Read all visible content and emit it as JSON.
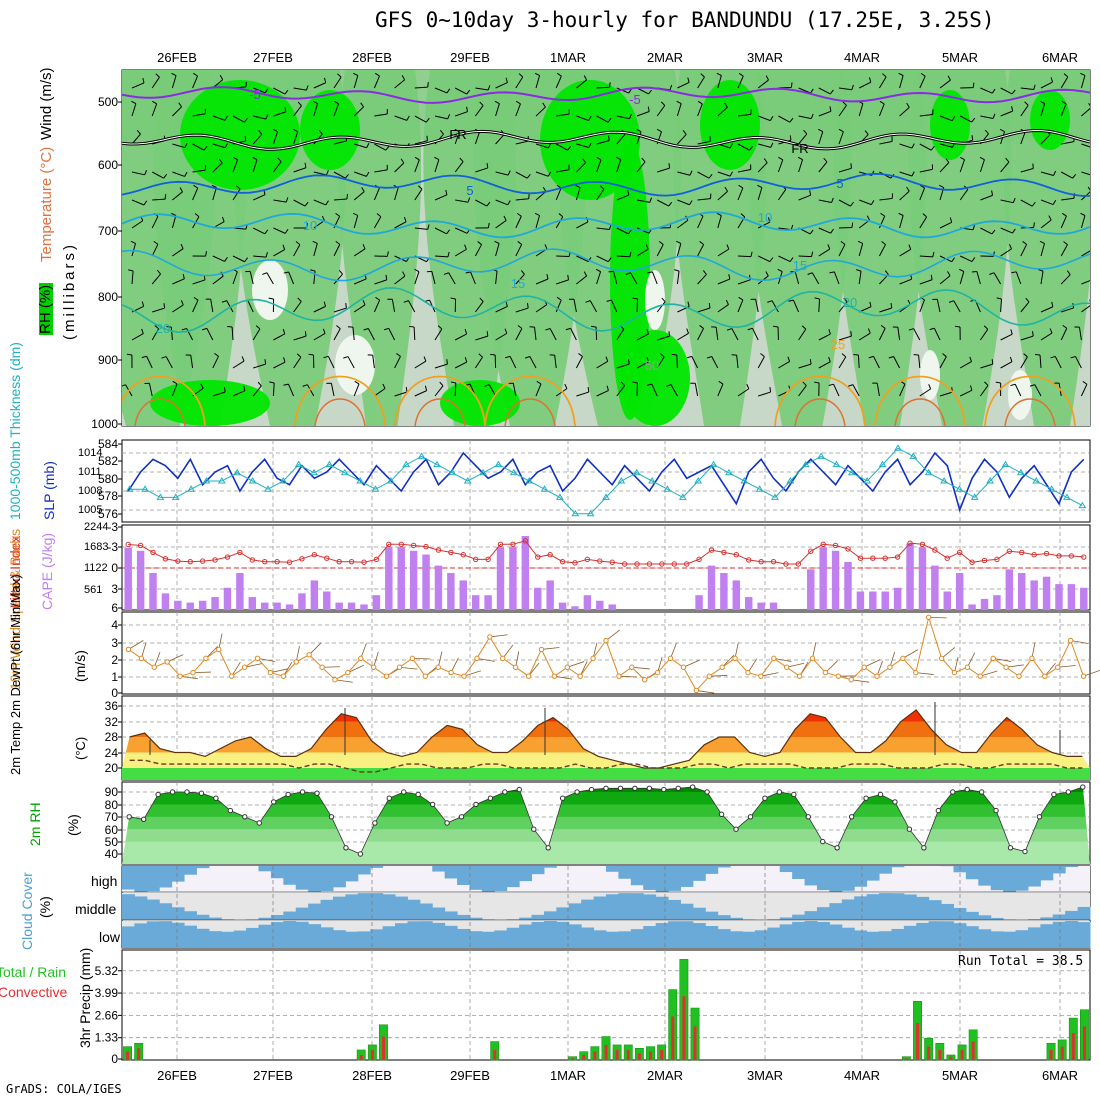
{
  "title": "GFS 0~10day 3-hourly for BANDUNDU (17.25E, 3.25S)",
  "credit": "GrADS: COLA/IGES",
  "colors": {
    "rh_light": "#c8d8c8",
    "rh_mid": "#78cc78",
    "rh_bright": "#00e600",
    "temp_purple": "#8a2be2",
    "temp_fr": "#000000",
    "temp_blue": "#1060d8",
    "temp_cyan": "#20a8d8",
    "temp_teal": "#20b4a0",
    "temp_orange": "#f0a020",
    "slp": "#1030c0",
    "thickness": "#20b0c0",
    "lifted": "#d83030",
    "cape": "#c080f0",
    "wind": "#e08820",
    "temp_high": "#f03000",
    "temp_mid": "#f8a030",
    "temp_low": "#f8f080",
    "rh_green": "#00a000",
    "cloud": "#6aaad8",
    "precip_total": "#20c020",
    "precip_conv": "#e03030"
  },
  "dates": [
    "26FEB",
    "27FEB",
    "28FEB",
    "29FEB",
    "1MAR",
    "2MAR",
    "3MAR",
    "4MAR",
    "5MAR",
    "6MAR"
  ],
  "panels": {
    "upper": {
      "labels": [
        "Wind (m/s)",
        "Temperature (°C)",
        "RH (%)",
        "(millibars)"
      ],
      "yticks": [
        "500",
        "600",
        "700",
        "800",
        "900",
        "1000"
      ],
      "contour_labels": [
        "-5",
        "-5",
        "FR",
        "FR",
        "5",
        "5",
        "10",
        "10",
        "15",
        "15",
        "20",
        "20",
        "25",
        "50"
      ]
    },
    "slp": {
      "label_left": "1000-500mb Thickness (dm)",
      "label_right": "SLP (mb)",
      "thick_ticks": [
        "584",
        "582",
        "580",
        "578",
        "576"
      ],
      "slp_ticks": [
        "1014",
        "1011",
        "1008",
        "1005"
      ]
    },
    "cape": {
      "label_left": "Lifted Index",
      "label_right": "CAPE (J/kg)",
      "li_ticks": [
        "-3",
        "-3",
        "0",
        "3",
        "6"
      ],
      "cape_ticks": [
        "2244",
        "1683",
        "1122",
        "561"
      ]
    },
    "wind": {
      "label": "10m Wind Speed & Barbs",
      "unit": "(m/s)",
      "yticks": [
        "4",
        "3",
        "2",
        "1",
        "0"
      ]
    },
    "temp2m": {
      "label": "2m Temp 2m DewPt (6hr Min/Max)",
      "unit": "(°C)",
      "yticks": [
        "36",
        "32",
        "28",
        "24",
        "20"
      ]
    },
    "rh2m": {
      "label": "2m RH",
      "unit": "(%)",
      "yticks": [
        "90",
        "80",
        "70",
        "60",
        "50",
        "40"
      ]
    },
    "cloud": {
      "label": "Cloud Cover",
      "unit": "(%)",
      "levels": [
        "high",
        "middle",
        "low"
      ]
    },
    "precip": {
      "label_total": "Total / Rain",
      "label_conv": "Convective",
      "label": "3hr Precip (mm)",
      "yticks": [
        "5.32",
        "3.99",
        "2.66",
        "1.33",
        "0"
      ],
      "run_total": "Run Total = 38.5"
    }
  },
  "chart_data": {
    "type": "bar",
    "x": [
      "26FEB",
      "27FEB",
      "28FEB",
      "29FEB",
      "1MAR",
      "2MAR",
      "3MAR",
      "4MAR",
      "5MAR",
      "6MAR"
    ],
    "slp_mb": [
      1008,
      1011,
      1013,
      1012,
      1010,
      1013,
      1009,
      1011,
      1012,
      1008,
      1011,
      1013,
      1010,
      1009,
      1012,
      1010,
      1011,
      1013,
      1011,
      1009,
      1012,
      1010,
      1008,
      1011,
      1013,
      1009,
      1011,
      1014,
      1012,
      1010,
      1011,
      1013,
      1009,
      1011,
      1012,
      1008,
      1010,
      1013,
      1011,
      1009,
      1012,
      1010,
      1008,
      1011,
      1013,
      1010,
      1011,
      1012,
      1009,
      1006,
      1011,
      1013,
      1010,
      1008,
      1011,
      1013,
      1011,
      1009,
      1012,
      1010,
      1008,
      1011,
      1013,
      1009,
      1011,
      1014,
      1012,
      1005,
      1010,
      1013,
      1011,
      1007,
      1010,
      1012,
      1009,
      1006,
      1011,
      1013
    ],
    "thickness_dm": [
      579,
      579,
      578,
      578,
      579,
      580,
      580,
      581,
      580,
      579,
      580,
      582,
      581,
      582,
      581,
      580,
      579,
      580,
      582,
      583,
      582,
      581,
      580,
      581,
      582,
      581,
      580,
      579,
      578,
      576,
      576,
      578,
      580,
      581,
      580,
      579,
      578,
      580,
      582,
      581,
      580,
      579,
      578,
      580,
      582,
      583,
      582,
      581,
      580,
      582,
      584,
      583,
      581,
      580,
      579,
      578,
      580,
      582,
      581,
      580,
      579,
      578,
      577
    ],
    "cape_jkg": [
      1683,
      1600,
      1000,
      450,
      250,
      200,
      250,
      350,
      600,
      1000,
      350,
      200,
      200,
      150,
      450,
      800,
      500,
      200,
      200,
      150,
      400,
      1700,
      1700,
      1600,
      1500,
      1200,
      1000,
      800,
      400,
      400,
      1700,
      1700,
      2000,
      600,
      800,
      200,
      100,
      400,
      250,
      150,
      0,
      0,
      0,
      0,
      0,
      0,
      400,
      1200,
      1000,
      800,
      350,
      200,
      200,
      0,
      0,
      1100,
      1700,
      1600,
      1300,
      500,
      500,
      500,
      600,
      1800,
      1700,
      1200,
      500,
      1000,
      150,
      300,
      400,
      1100,
      1000,
      800,
      900,
      700,
      700,
      600
    ],
    "wind10m_ms": [
      2.5,
      2,
      1.5,
      1.8,
      1,
      1.2,
      2,
      2.5,
      1,
      1.5,
      2,
      1.2,
      1,
      1.8,
      2.2,
      1.5,
      0.8,
      1.2,
      2,
      1.5,
      1,
      1.5,
      2,
      1,
      1.5,
      1.2,
      1,
      2,
      3.2,
      2,
      1.5,
      1,
      2.5,
      1,
      1.5,
      1,
      2,
      3,
      1,
      1.5,
      0.8,
      1.2,
      2,
      1.5,
      0.2,
      1,
      1.5,
      2,
      1.2,
      1,
      2,
      1.5,
      1,
      2,
      1.2,
      1,
      0.8,
      1.5,
      1,
      1.5,
      2,
      1.2,
      4.3,
      2,
      1.2,
      1.5,
      1,
      2,
      1.5,
      1,
      2,
      1,
      1.5,
      3,
      1
    ],
    "temp2m_c": [
      28,
      29,
      25,
      24,
      24,
      23,
      25,
      27,
      28,
      25,
      23,
      23,
      25,
      30,
      34,
      33,
      27,
      24,
      23,
      24,
      28,
      31,
      30,
      26,
      24,
      24,
      27,
      31,
      33,
      30,
      25,
      23,
      22,
      21,
      20,
      20,
      21,
      22,
      26,
      28,
      28,
      24,
      23,
      24,
      30,
      34,
      33,
      28,
      24,
      24,
      27,
      32,
      35,
      30,
      26,
      24,
      24,
      29,
      33,
      30,
      26,
      24,
      23,
      23
    ],
    "dewpt2m_c": [
      22,
      22,
      21,
      21,
      21,
      21,
      21,
      21,
      21,
      21,
      21,
      20,
      21,
      21,
      20,
      19,
      19,
      20,
      21,
      21,
      20,
      20,
      20,
      21,
      21,
      20,
      20,
      20,
      20,
      21,
      20,
      20,
      21,
      21,
      20,
      20,
      20,
      21,
      21,
      20,
      21,
      21,
      21,
      21,
      20,
      20,
      20,
      21,
      21,
      21,
      20,
      20,
      20,
      21,
      21,
      20,
      20,
      21,
      21,
      21,
      21,
      20,
      20
    ],
    "rh2m_pct": [
      70,
      68,
      88,
      90,
      90,
      89,
      85,
      75,
      70,
      65,
      82,
      88,
      90,
      89,
      70,
      45,
      40,
      65,
      85,
      90,
      88,
      80,
      65,
      70,
      80,
      85,
      90,
      92,
      60,
      45,
      85,
      90,
      92,
      93,
      93,
      93,
      93,
      92,
      93,
      94,
      90,
      72,
      60,
      70,
      85,
      90,
      88,
      70,
      50,
      45,
      70,
      85,
      88,
      82,
      60,
      45,
      75,
      90,
      92,
      90,
      75,
      45,
      42,
      70,
      88,
      90,
      94
    ],
    "precip_mm": [
      0.8,
      1.0,
      0,
      0,
      0,
      0,
      0,
      0,
      0,
      0,
      0,
      0,
      0,
      0,
      0,
      0,
      0,
      0,
      0,
      0,
      0,
      0.6,
      0.9,
      2.1,
      0,
      0,
      0,
      0,
      0,
      0,
      0,
      0,
      0,
      1.1,
      0,
      0,
      0,
      0,
      0,
      0,
      0.2,
      0.5,
      0.8,
      1.4,
      0.9,
      0.9,
      0.7,
      0.8,
      0.9,
      4.2,
      6.0,
      3.1,
      0,
      0,
      0,
      0,
      0,
      0,
      0,
      0,
      0,
      0,
      0,
      0,
      0,
      0,
      0,
      0,
      0,
      0,
      0.2,
      3.5,
      1.3,
      1.0,
      0.3,
      0.9,
      1.8,
      0,
      0,
      0,
      0,
      0,
      0,
      1.0,
      1.2,
      2.5,
      3.0
    ],
    "precip_conv_mm": [
      0.5,
      0.7,
      0,
      0,
      0,
      0,
      0,
      0,
      0,
      0,
      0,
      0,
      0,
      0,
      0,
      0,
      0,
      0,
      0,
      0,
      0,
      0.3,
      0.6,
      1.4,
      0,
      0,
      0,
      0,
      0,
      0,
      0,
      0,
      0,
      0.6,
      0,
      0,
      0,
      0,
      0,
      0,
      0.1,
      0.3,
      0.5,
      0.9,
      0.6,
      0.6,
      0.4,
      0.5,
      0.6,
      2.6,
      3.8,
      2.0,
      0,
      0,
      0,
      0,
      0,
      0,
      0,
      0,
      0,
      0,
      0,
      0,
      0,
      0,
      0,
      0,
      0,
      0,
      0.1,
      2.2,
      0.8,
      0.6,
      0.2,
      0.6,
      1.1,
      0,
      0,
      0,
      0,
      0,
      0,
      0.6,
      0.8,
      1.6,
      2.0
    ]
  }
}
